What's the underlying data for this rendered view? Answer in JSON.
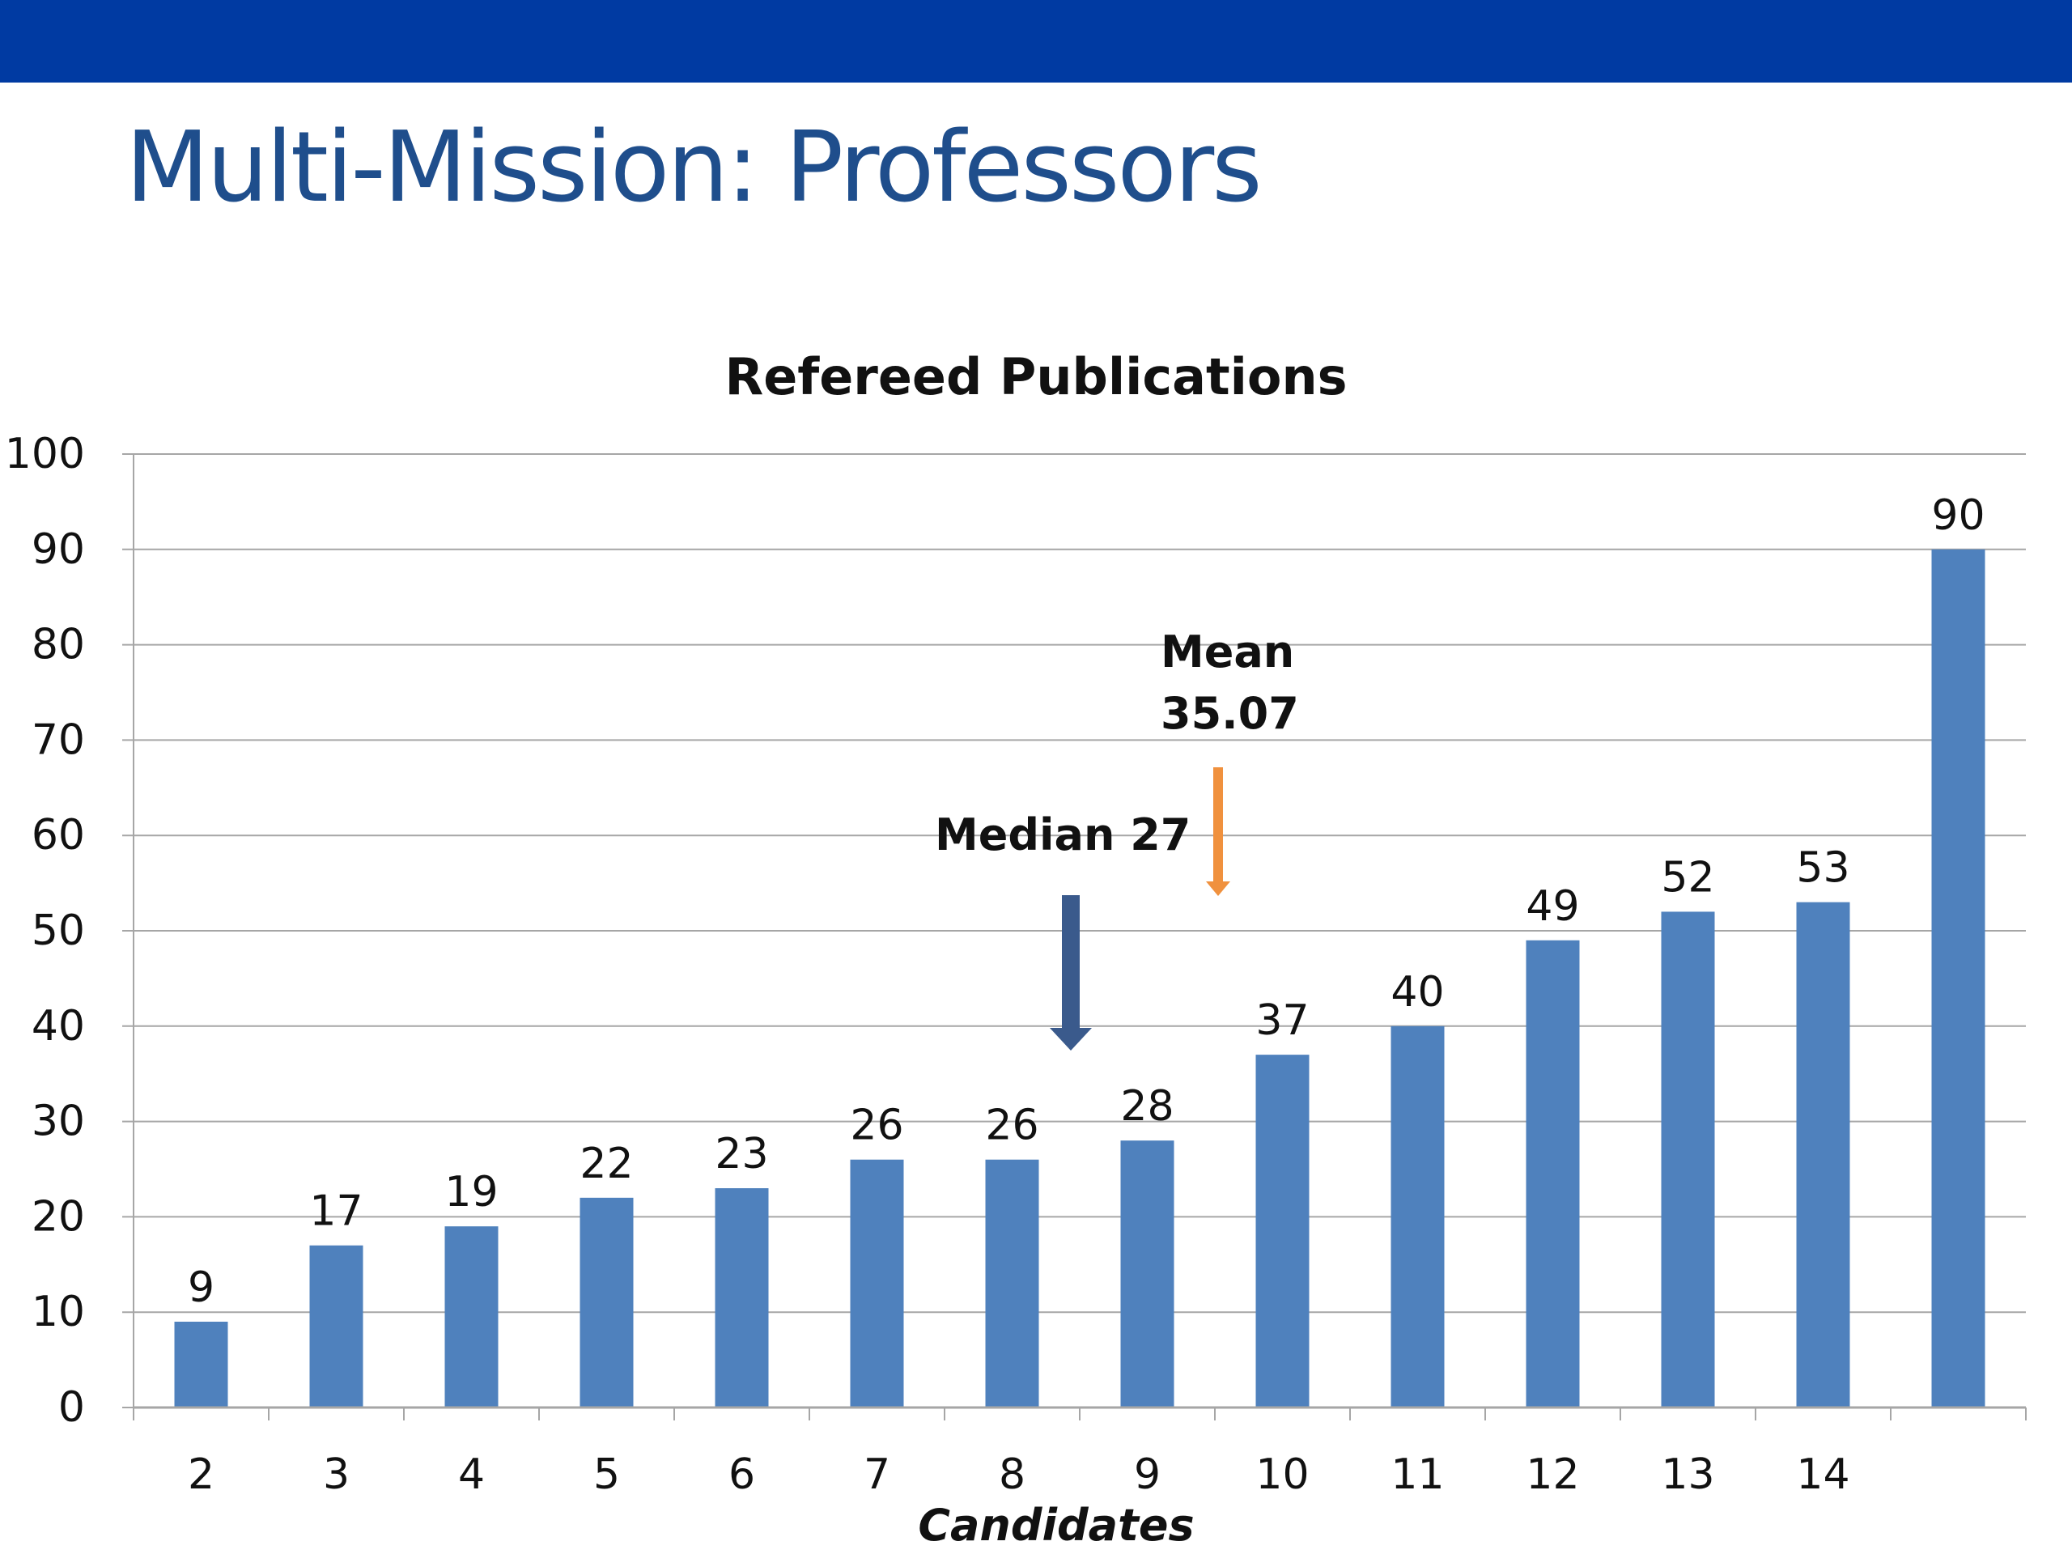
{
  "slide": {
    "title": "Multi-Mission: Professors",
    "header_bar_color": "#003aa2"
  },
  "chart_data": {
    "type": "bar",
    "title": "Refereed Publications",
    "xlabel": "Candidates",
    "ylabel": "",
    "categories": [
      "2",
      "3",
      "4",
      "5",
      "6",
      "7",
      "8",
      "9",
      "10",
      "11",
      "12",
      "13",
      "14",
      ""
    ],
    "values": [
      9,
      17,
      19,
      22,
      23,
      26,
      26,
      28,
      37,
      40,
      49,
      52,
      53,
      90
    ],
    "ylim": [
      0,
      100
    ],
    "yticks": [
      0,
      10,
      20,
      30,
      40,
      50,
      60,
      70,
      80,
      90,
      100
    ],
    "grid": true,
    "legend": "none",
    "bar_color": "#4f81bd",
    "annotations": [
      {
        "id": "median",
        "lines": [
          "Median 27"
        ],
        "value": 27,
        "arrow_color": "#3a5a8c"
      },
      {
        "id": "mean",
        "lines": [
          "Mean",
          "35.07"
        ],
        "value": 35.07,
        "arrow_color": "#f0913e"
      }
    ]
  }
}
